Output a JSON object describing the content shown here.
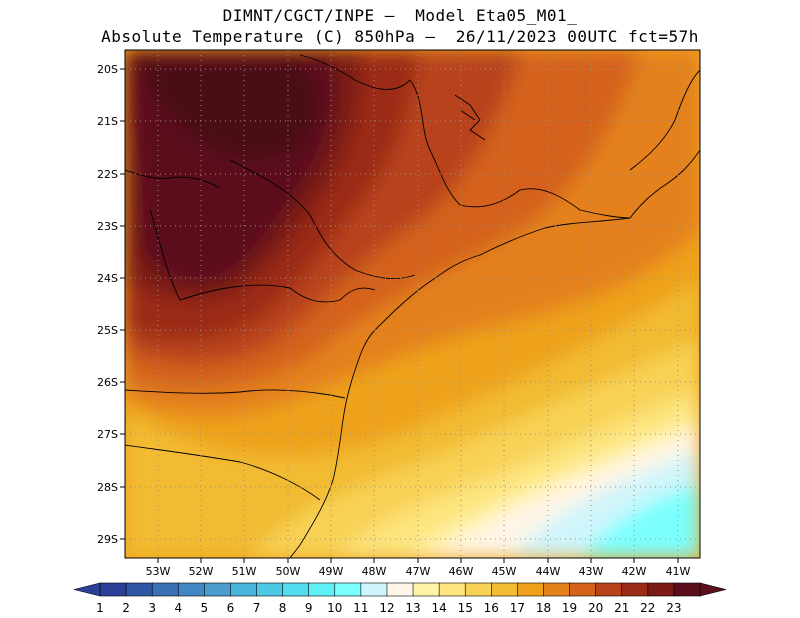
{
  "header": {
    "line1": "DIMNT/CGCT/INPE —  Model Eta05_M01_",
    "line2": "Absolute Temperature (C) 850hPa —  26/11/2023 00UTC fct=57h"
  },
  "map": {
    "variable": "Absolute Temperature (C) 850hPa",
    "lat_labels": [
      "20S",
      "21S",
      "22S",
      "23S",
      "24S",
      "25S",
      "26S",
      "27S",
      "28S",
      "29S"
    ],
    "lon_labels": [
      "53W",
      "52W",
      "51W",
      "50W",
      "49W",
      "48W",
      "47W",
      "46W",
      "45W",
      "44W",
      "43W",
      "42W",
      "41W"
    ],
    "grid": "dotted"
  },
  "colorbar": {
    "labels": [
      "1",
      "2",
      "3",
      "4",
      "5",
      "6",
      "7",
      "8",
      "9",
      "10",
      "11",
      "12",
      "13",
      "14",
      "15",
      "16",
      "17",
      "18",
      "19",
      "20",
      "21",
      "22",
      "23"
    ],
    "colors": [
      "#2a3f97",
      "#3057a5",
      "#3a70b4",
      "#4287c3",
      "#4a9ccf",
      "#4ab5db",
      "#4dc9e6",
      "#52dcee",
      "#5df0f6",
      "#7affff",
      "#cff5fb",
      "#fff5e6",
      "#fff3a8",
      "#fde47e",
      "#f8d254",
      "#f2bb31",
      "#eea21c",
      "#e4811a",
      "#d4621a",
      "#b8431a",
      "#9b2b16",
      "#7b1a16",
      "#5c0f1a"
    ]
  }
}
